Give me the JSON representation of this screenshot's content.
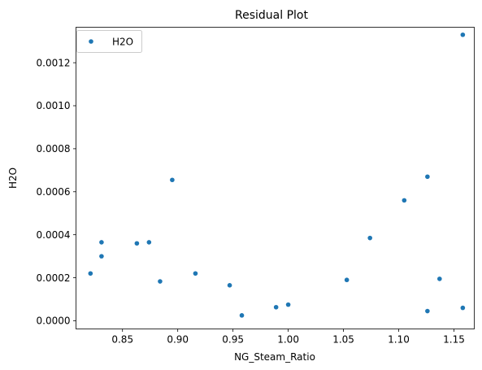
{
  "chart_data": {
    "type": "scatter",
    "title": "Residual Plot",
    "xlabel": "NG_Steam_Ratio",
    "ylabel": "H2O",
    "xlim": [
      0.8079,
      1.1684
    ],
    "ylim": [
      -3.8e-05,
      0.001365
    ],
    "xticks": [
      0.85,
      0.9,
      0.95,
      1.0,
      1.05,
      1.1,
      1.15
    ],
    "xtick_labels": [
      "0.85",
      "0.90",
      "0.95",
      "1.00",
      "1.05",
      "1.10",
      "1.15"
    ],
    "yticks": [
      0.0,
      0.0002,
      0.0004,
      0.0006,
      0.0008,
      0.001,
      0.0012
    ],
    "ytick_labels": [
      "0.0000",
      "0.0002",
      "0.0004",
      "0.0006",
      "0.0008",
      "0.0010",
      "0.0012"
    ],
    "grid": false,
    "legend_position": "top-left",
    "series": [
      {
        "name": "H2O",
        "color": "#1f77b4",
        "points": [
          [
            0.821,
            0.00022
          ],
          [
            0.831,
            0.0003
          ],
          [
            0.831,
            0.000365
          ],
          [
            0.863,
            0.00036
          ],
          [
            0.874,
            0.000365
          ],
          [
            0.884,
            0.000183
          ],
          [
            0.895,
            0.000655
          ],
          [
            0.916,
            0.00022
          ],
          [
            0.947,
            0.000165
          ],
          [
            0.958,
            2.5e-05
          ],
          [
            0.989,
            6.3e-05
          ],
          [
            1.0,
            7.5e-05
          ],
          [
            1.053,
            0.00019
          ],
          [
            1.074,
            0.000385
          ],
          [
            1.105,
            0.00056
          ],
          [
            1.126,
            0.00067
          ],
          [
            1.126,
            4.5e-05
          ],
          [
            1.137,
            0.000195
          ],
          [
            1.158,
            0.00133
          ],
          [
            1.158,
            6e-05
          ]
        ]
      }
    ]
  }
}
